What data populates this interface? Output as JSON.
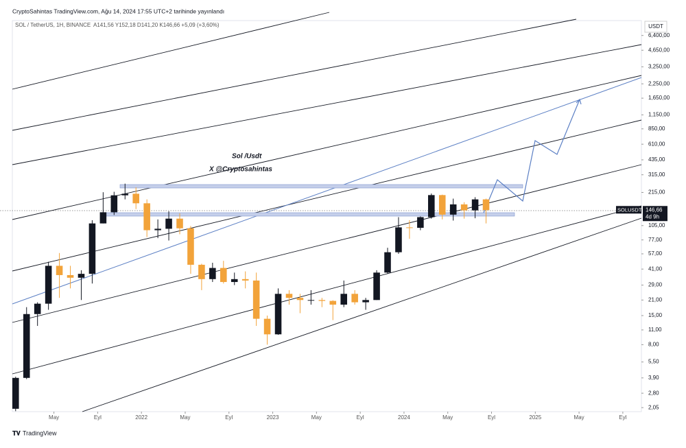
{
  "header": {
    "publisher": "CryptoSahintas TradingView.com, Ağu 14, 2024 17:55 UTC+2 tarihinde yayınlandı"
  },
  "chart_data": {
    "type": "candlestick",
    "symbol_line": "SOL / TetherUS, 1H, BINANCE",
    "ohlc_line": "A141,56 Y152,18 D141,20 K146,66 +5,09 (+3,60%)",
    "currency": "USDT",
    "annotations": [
      "Sol /Usdt",
      "X @Cryptosahintas"
    ],
    "price_tag": {
      "symbol": "SOLUSDT",
      "label": "146,66",
      "countdown": "4d 9h"
    },
    "log_scale": true,
    "up_color": "#131722",
    "down_color": "#f2a33a",
    "x": [
      0,
      1,
      2,
      3,
      4,
      5,
      6,
      7,
      8,
      9,
      10,
      11,
      12,
      13,
      14,
      15,
      16,
      17,
      18,
      19,
      20,
      21,
      22,
      23,
      24,
      25,
      26,
      27,
      28,
      29,
      30,
      31,
      32,
      33,
      34,
      35,
      36,
      37,
      38,
      39,
      40,
      41,
      42,
      43
    ],
    "open": [
      2.0,
      3.9,
      15.5,
      19.4,
      44,
      36,
      34,
      37,
      110,
      140,
      202,
      209,
      170,
      95,
      98,
      122,
      99,
      45,
      33,
      42,
      31,
      33,
      32,
      14,
      10,
      24,
      22,
      21,
      21,
      20.6,
      19,
      24,
      20,
      21,
      38,
      59,
      101,
      100,
      126,
      203,
      133,
      166,
      146,
      185
    ],
    "high": [
      4.0,
      18,
      20,
      48,
      58,
      44,
      40,
      118,
      216,
      218,
      260,
      240,
      185,
      120,
      143,
      137,
      104,
      46,
      47,
      49,
      38,
      39,
      38,
      15,
      27,
      26,
      24,
      26,
      22,
      20.9,
      32,
      26,
      22,
      40,
      65,
      126,
      118,
      128,
      210,
      205,
      188,
      174,
      194,
      188
    ],
    "low": [
      1.9,
      3.8,
      12,
      17,
      22,
      27,
      21,
      30,
      110,
      132,
      185,
      150,
      82,
      80,
      76,
      87,
      37,
      26,
      31,
      30,
      29,
      27,
      12,
      8.0,
      9.9,
      19,
      15.8,
      19,
      18,
      13.6,
      18,
      19,
      17,
      21,
      37,
      57,
      79,
      95,
      122,
      120,
      117,
      122,
      123,
      110
    ],
    "close": [
      3.9,
      15.5,
      19.4,
      44,
      36,
      34,
      37,
      110,
      140,
      202,
      209,
      170,
      95,
      98,
      122,
      99,
      45,
      33,
      42,
      31,
      33,
      32,
      14,
      10,
      24,
      22,
      21,
      21,
      20.6,
      19,
      24,
      20,
      21,
      38,
      59,
      101,
      100,
      126,
      203,
      133,
      166,
      146,
      185,
      146.66
    ],
    "xlim": [
      0.2,
      57.7
    ],
    "xticks": [
      {
        "value": 4,
        "label": "May"
      },
      {
        "value": 8,
        "label": "Eyl"
      },
      {
        "value": 12,
        "label": "2022"
      },
      {
        "value": 16,
        "label": "May"
      },
      {
        "value": 20,
        "label": "Eyl"
      },
      {
        "value": 24,
        "label": "2023"
      },
      {
        "value": 28,
        "label": "May"
      },
      {
        "value": 32,
        "label": "Eyl"
      },
      {
        "value": 36,
        "label": "2024"
      },
      {
        "value": 40,
        "label": "May"
      },
      {
        "value": 44,
        "label": "Eyl"
      },
      {
        "value": 48,
        "label": "2025"
      },
      {
        "value": 52,
        "label": "May"
      },
      {
        "value": 56,
        "label": "Eyl"
      }
    ],
    "ylim": [
      1.88,
      8830
    ],
    "yticks": [
      {
        "value": 2.05,
        "label": "2,05"
      },
      {
        "value": 2.8,
        "label": "2,80"
      },
      {
        "value": 3.9,
        "label": "3,90"
      },
      {
        "value": 5.5,
        "label": "5,50"
      },
      {
        "value": 8,
        "label": "8,00"
      },
      {
        "value": 11,
        "label": "11,00"
      },
      {
        "value": 15,
        "label": "15,00"
      },
      {
        "value": 21,
        "label": "21,00"
      },
      {
        "value": 29,
        "label": "29,00"
      },
      {
        "value": 41,
        "label": "41,00"
      },
      {
        "value": 57,
        "label": "57,00"
      },
      {
        "value": 77,
        "label": "77,00"
      },
      {
        "value": 105,
        "label": "105,00"
      },
      {
        "value": 215,
        "label": "215,00"
      },
      {
        "value": 315,
        "label": "315,00"
      },
      {
        "value": 435,
        "label": "435,00"
      },
      {
        "value": 610,
        "label": "610,00"
      },
      {
        "value": 850,
        "label": "850,00"
      },
      {
        "value": 1150,
        "label": "1,150,00"
      },
      {
        "value": 1650,
        "label": "1,650,00"
      },
      {
        "value": 2250,
        "label": "2,250,00"
      },
      {
        "value": 3250,
        "label": "3,250,00"
      },
      {
        "value": 4650,
        "label": "4,650,00"
      },
      {
        "value": 6400,
        "label": "6,400,00"
      }
    ]
  },
  "footer": {
    "brand": "TradingView"
  }
}
